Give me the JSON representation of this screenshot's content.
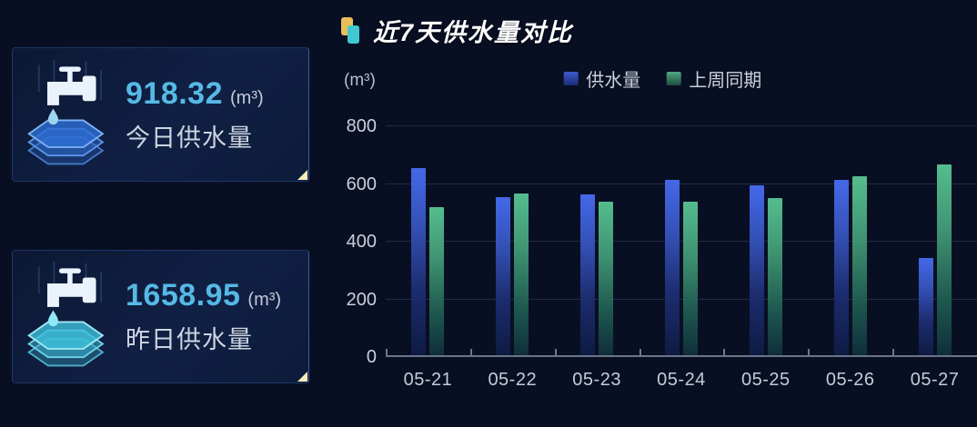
{
  "colors": {
    "page_bg": "#090F23",
    "stat_number": "#56B9E5",
    "series_supply": "#3E63DD",
    "series_last_week": "#52B88A",
    "title_icon_yellow": "#E9BE5A",
    "title_icon_cyan": "#3FC8CF",
    "card_corner_accent": "#F6EDB8"
  },
  "stat_cards": [
    {
      "value": "918.32",
      "unit": "(m³)",
      "label": "今日供水量",
      "icon": "water-tap-hexagon-blue-icon"
    },
    {
      "value": "1658.95",
      "unit": "(m³)",
      "label": "昨日供水量",
      "icon": "water-tap-hexagon-cyan-icon"
    }
  ],
  "chart_data": {
    "type": "bar",
    "title": "近7天供水量对比",
    "ylabel": "(m³)",
    "categories": [
      "05-21",
      "05-22",
      "05-23",
      "05-24",
      "05-25",
      "05-26",
      "05-27"
    ],
    "series": [
      {
        "key": "supply",
        "name": "供水量",
        "color": "#3E63DD",
        "values": [
          650,
          548,
          557,
          608,
          590,
          608,
          336
        ]
      },
      {
        "key": "last-week",
        "name": "上周同期",
        "color": "#52B88A",
        "values": [
          515,
          562,
          532,
          532,
          545,
          622,
          660
        ]
      }
    ],
    "ylim": [
      0,
      800
    ],
    "yticks": [
      0,
      200,
      400,
      600,
      800
    ],
    "grid": true,
    "legend_position": "top-center"
  }
}
